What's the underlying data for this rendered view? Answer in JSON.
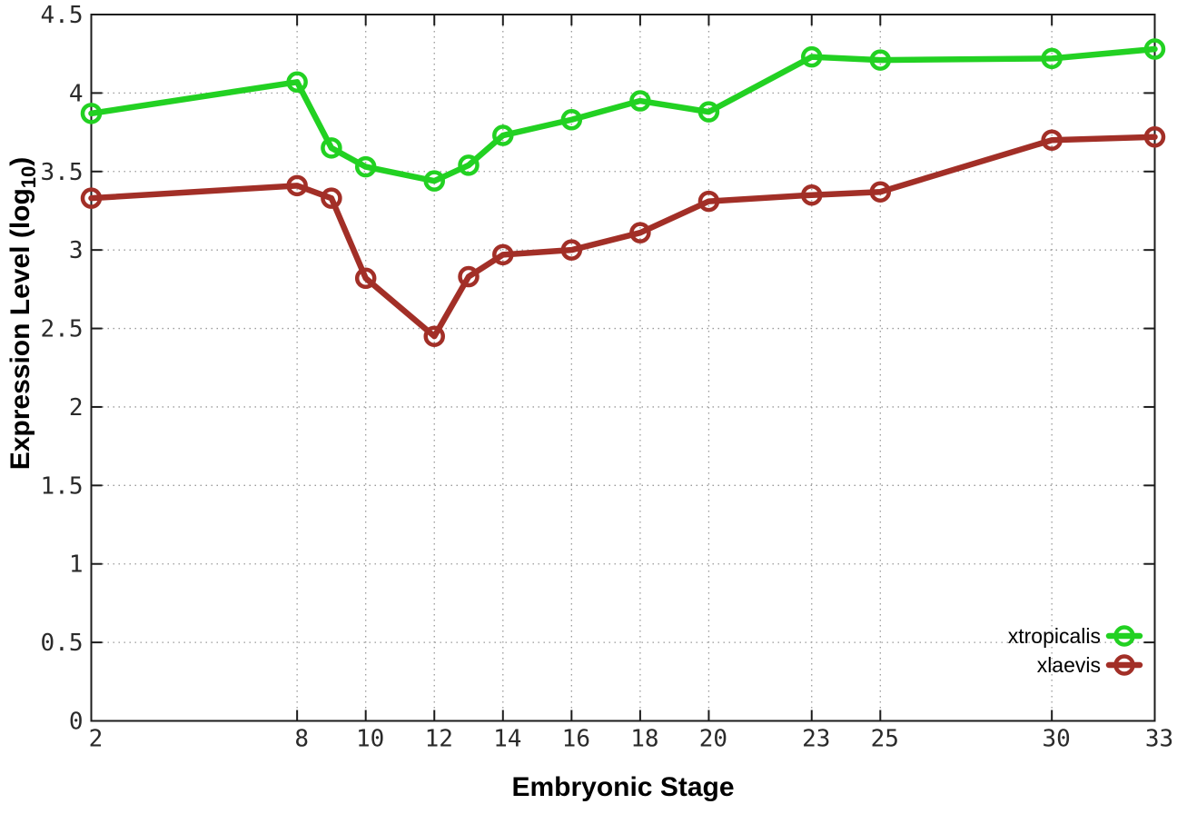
{
  "chart_data": {
    "type": "line",
    "title": "",
    "xlabel": "Embryonic Stage",
    "ylabel_parts": {
      "main": "Expression Level (log",
      "sub": "10",
      "end": ")"
    },
    "x": [
      2,
      8,
      9,
      10,
      12,
      13,
      14,
      16,
      18,
      20,
      23,
      25,
      30,
      33
    ],
    "series": [
      {
        "name": "xtropicalis",
        "color": "#22d122",
        "values": [
          3.87,
          4.07,
          3.65,
          3.53,
          3.44,
          3.54,
          3.73,
          3.83,
          3.95,
          3.88,
          4.23,
          4.21,
          4.22,
          4.28
        ]
      },
      {
        "name": "xlaevis",
        "color": "#a22f27",
        "values": [
          3.33,
          3.41,
          3.33,
          2.82,
          2.45,
          2.83,
          2.97,
          3.0,
          3.11,
          3.31,
          3.35,
          3.37,
          3.7,
          3.72
        ]
      }
    ],
    "xlim": [
      2,
      33
    ],
    "ylim": [
      0,
      4.5
    ],
    "xticks": [
      2,
      8,
      10,
      12,
      14,
      16,
      18,
      20,
      23,
      25,
      30,
      33
    ],
    "xtick_labels": [
      "2",
      "8",
      "10",
      "12",
      "14",
      "16",
      "18",
      "20",
      "23",
      "25",
      "30",
      "33"
    ],
    "yticks": [
      0,
      0.5,
      1,
      1.5,
      2,
      2.5,
      3,
      3.5,
      4,
      4.5
    ],
    "ytick_labels": [
      "0",
      "0.5",
      "1",
      "1.5",
      "2",
      "2.5",
      "3",
      "3.5",
      "4",
      "4.5"
    ],
    "grid": true,
    "grid_style": "dotted",
    "legend_position": "bottom-right",
    "legend_entries": [
      "xtropicalis",
      "xlaevis"
    ]
  },
  "colors": {
    "background": "#ffffff",
    "border": "#1c1c1c",
    "grid": "#9a9a9a",
    "text": "#000000",
    "series_xtropicalis": "#22d122",
    "series_xlaevis": "#a22f27"
  }
}
